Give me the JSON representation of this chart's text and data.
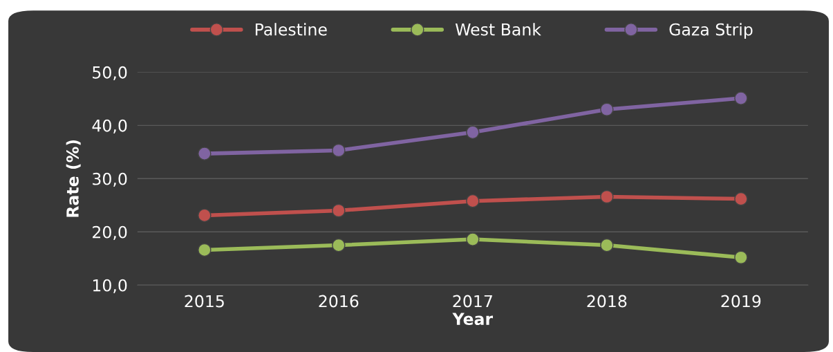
{
  "chart_data": {
    "type": "line",
    "xlabel": "Year",
    "ylabel": "Rate (%)",
    "categories": [
      "2015",
      "2016",
      "2017",
      "2018",
      "2019"
    ],
    "series": [
      {
        "name": "Palestine",
        "color": "#c0504d",
        "values": [
          23.1,
          24.0,
          25.8,
          26.6,
          26.2
        ]
      },
      {
        "name": "West Bank",
        "color": "#9bbb59",
        "values": [
          16.6,
          17.5,
          18.6,
          17.5,
          15.2
        ]
      },
      {
        "name": "Gaza Strip",
        "color": "#8064a2",
        "values": [
          34.7,
          35.3,
          38.7,
          43.0,
          45.1
        ]
      }
    ],
    "ylim": [
      10,
      50
    ],
    "yticks": [
      {
        "value": 10,
        "label": "10,0"
      },
      {
        "value": 20,
        "label": "20,0"
      },
      {
        "value": 30,
        "label": "30,0"
      },
      {
        "value": 40,
        "label": "40,0"
      },
      {
        "value": 50,
        "label": "50,0"
      }
    ],
    "grid": "y",
    "legend": "top",
    "marker": "circle",
    "line_style": "solid"
  }
}
